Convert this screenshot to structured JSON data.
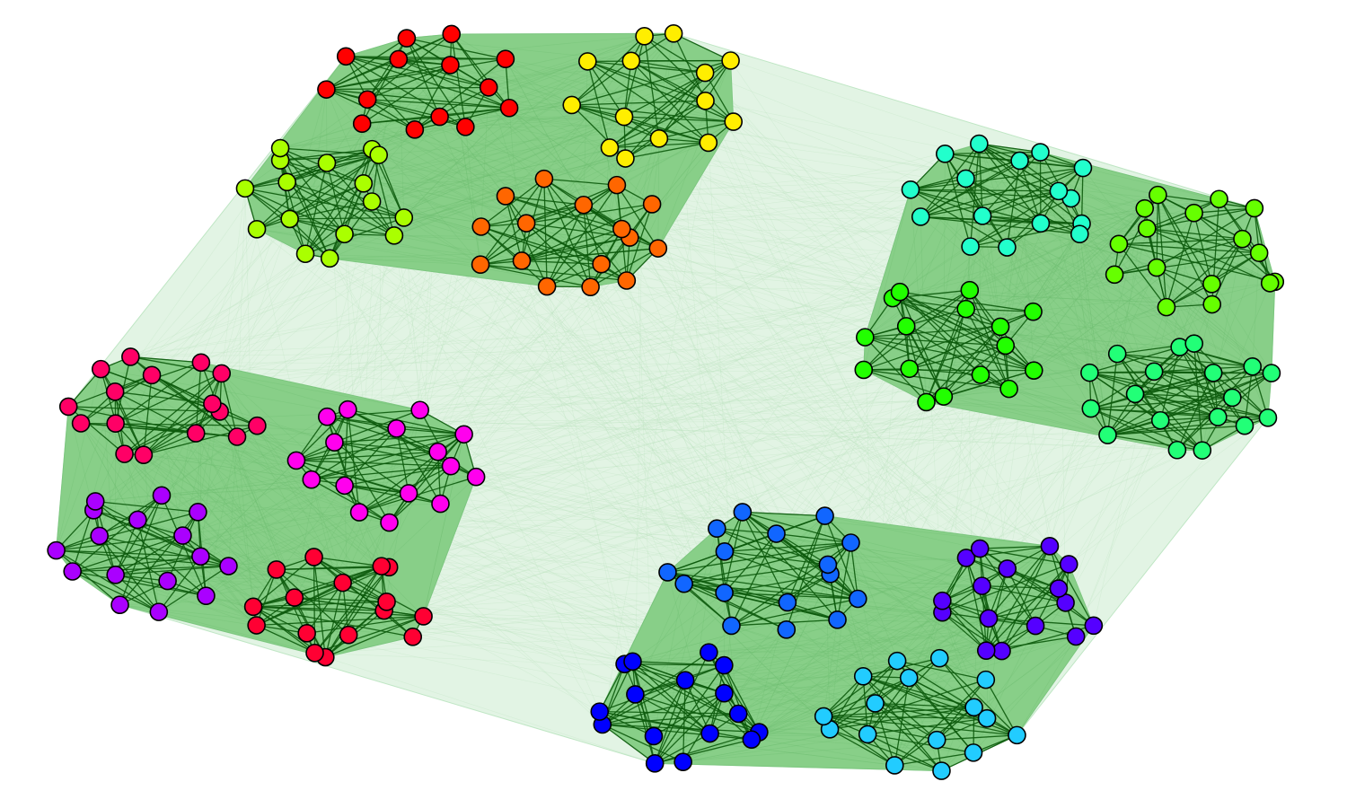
{
  "graph": {
    "type": "hierarchical-network",
    "colors": {
      "background": "#ffffff",
      "outer_region": "#e2f4e4",
      "group_region": "#88cf88",
      "intra_cluster_edge": "#0c5a0c",
      "node_outline": "#000000"
    },
    "groups": [
      {
        "name": "group-top-center",
        "clusters": [
          {
            "name": "red-cluster",
            "color": "#ff0000",
            "nodes": 14
          },
          {
            "name": "yellow-cluster",
            "color": "#ffee00",
            "nodes": 14
          },
          {
            "name": "yellow-green-cluster",
            "color": "#aaff00",
            "nodes": 16
          },
          {
            "name": "orange-cluster",
            "color": "#ff6600",
            "nodes": 16
          }
        ]
      },
      {
        "name": "group-right",
        "clusters": [
          {
            "name": "teal-cluster",
            "color": "#22ffcc",
            "nodes": 16
          },
          {
            "name": "lime-cluster",
            "color": "#66ff00",
            "nodes": 16
          },
          {
            "name": "green-cluster",
            "color": "#22ff00",
            "nodes": 16
          },
          {
            "name": "mint-cluster",
            "color": "#22ff77",
            "nodes": 18
          }
        ]
      },
      {
        "name": "group-left",
        "clusters": [
          {
            "name": "rose-cluster",
            "color": "#ff0066",
            "nodes": 16
          },
          {
            "name": "magenta-cluster",
            "color": "#ff00ee",
            "nodes": 16
          },
          {
            "name": "purple-cluster",
            "color": "#aa00ff",
            "nodes": 16
          },
          {
            "name": "crimson-cluster",
            "color": "#ff0033",
            "nodes": 16
          }
        ]
      },
      {
        "name": "group-bottom",
        "clusters": [
          {
            "name": "azure-cluster",
            "color": "#1166ff",
            "nodes": 16
          },
          {
            "name": "indigo-cluster",
            "color": "#5500ff",
            "nodes": 16
          },
          {
            "name": "blue-cluster",
            "color": "#0000ff",
            "nodes": 16
          },
          {
            "name": "cyan-cluster",
            "color": "#22ccff",
            "nodes": 16
          }
        ]
      }
    ]
  }
}
